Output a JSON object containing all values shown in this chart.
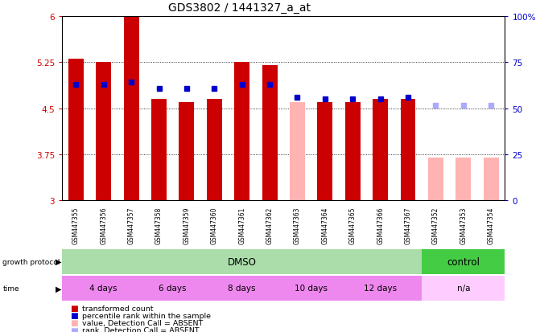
{
  "title": "GDS3802 / 1441327_a_at",
  "samples": [
    "GSM447355",
    "GSM447356",
    "GSM447357",
    "GSM447358",
    "GSM447359",
    "GSM447360",
    "GSM447361",
    "GSM447362",
    "GSM447363",
    "GSM447364",
    "GSM447365",
    "GSM447366",
    "GSM447367",
    "GSM447352",
    "GSM447353",
    "GSM447354"
  ],
  "bar_bottom": 3.0,
  "bar_values": [
    5.3,
    5.25,
    6.0,
    4.65,
    4.6,
    4.65,
    5.25,
    5.2,
    4.6,
    4.6,
    4.6,
    4.65,
    4.65,
    3.7,
    3.7,
    3.7
  ],
  "bar_absent": [
    false,
    false,
    false,
    false,
    false,
    false,
    false,
    false,
    true,
    false,
    false,
    false,
    false,
    true,
    true,
    true
  ],
  "percentile_values": [
    4.88,
    4.88,
    4.93,
    4.82,
    4.82,
    4.82,
    4.88,
    4.88,
    4.68,
    4.65,
    4.65,
    4.65,
    4.68,
    4.55,
    4.55,
    4.55
  ],
  "percentile_absent": [
    false,
    false,
    false,
    false,
    false,
    false,
    false,
    false,
    false,
    false,
    false,
    false,
    false,
    true,
    true,
    true
  ],
  "ylim_left": [
    3.0,
    6.0
  ],
  "ylim_right": [
    0,
    100
  ],
  "yticks_left": [
    3.0,
    3.75,
    4.5,
    5.25,
    6.0
  ],
  "ytick_labels_left": [
    "3",
    "3.75",
    "4.5",
    "5.25",
    "6"
  ],
  "yticks_right": [
    0,
    25,
    50,
    75,
    100
  ],
  "ytick_labels_right": [
    "0",
    "25",
    "50",
    "75",
    "100%"
  ],
  "bar_color_present": "#cc0000",
  "bar_color_absent": "#ffb3b3",
  "dot_color_present": "#0000cc",
  "dot_color_absent": "#aaaaff",
  "protocol_dmso_color": "#aaddaa",
  "protocol_control_color": "#44cc44",
  "time_color": "#ee88ee",
  "time_na_color": "#ffccff",
  "label_bg_color": "#cccccc",
  "protocol": [
    "DMSO",
    "DMSO",
    "DMSO",
    "DMSO",
    "DMSO",
    "DMSO",
    "DMSO",
    "DMSO",
    "DMSO",
    "DMSO",
    "DMSO",
    "DMSO",
    "DMSO",
    "control",
    "control",
    "control"
  ],
  "time_labels": [
    "4 days",
    "4 days",
    "4 days",
    "6 days",
    "6 days",
    "8 days",
    "8 days",
    "8 days",
    "10 days",
    "10 days",
    "12 days",
    "12 days",
    "12 days",
    "n/a",
    "n/a",
    "n/a"
  ],
  "n_samples": 16,
  "bar_width": 0.55,
  "background_color": "#ffffff",
  "left_ax_color": "#cc0000",
  "right_ax_color": "#0000cc",
  "spine_color": "#000000"
}
